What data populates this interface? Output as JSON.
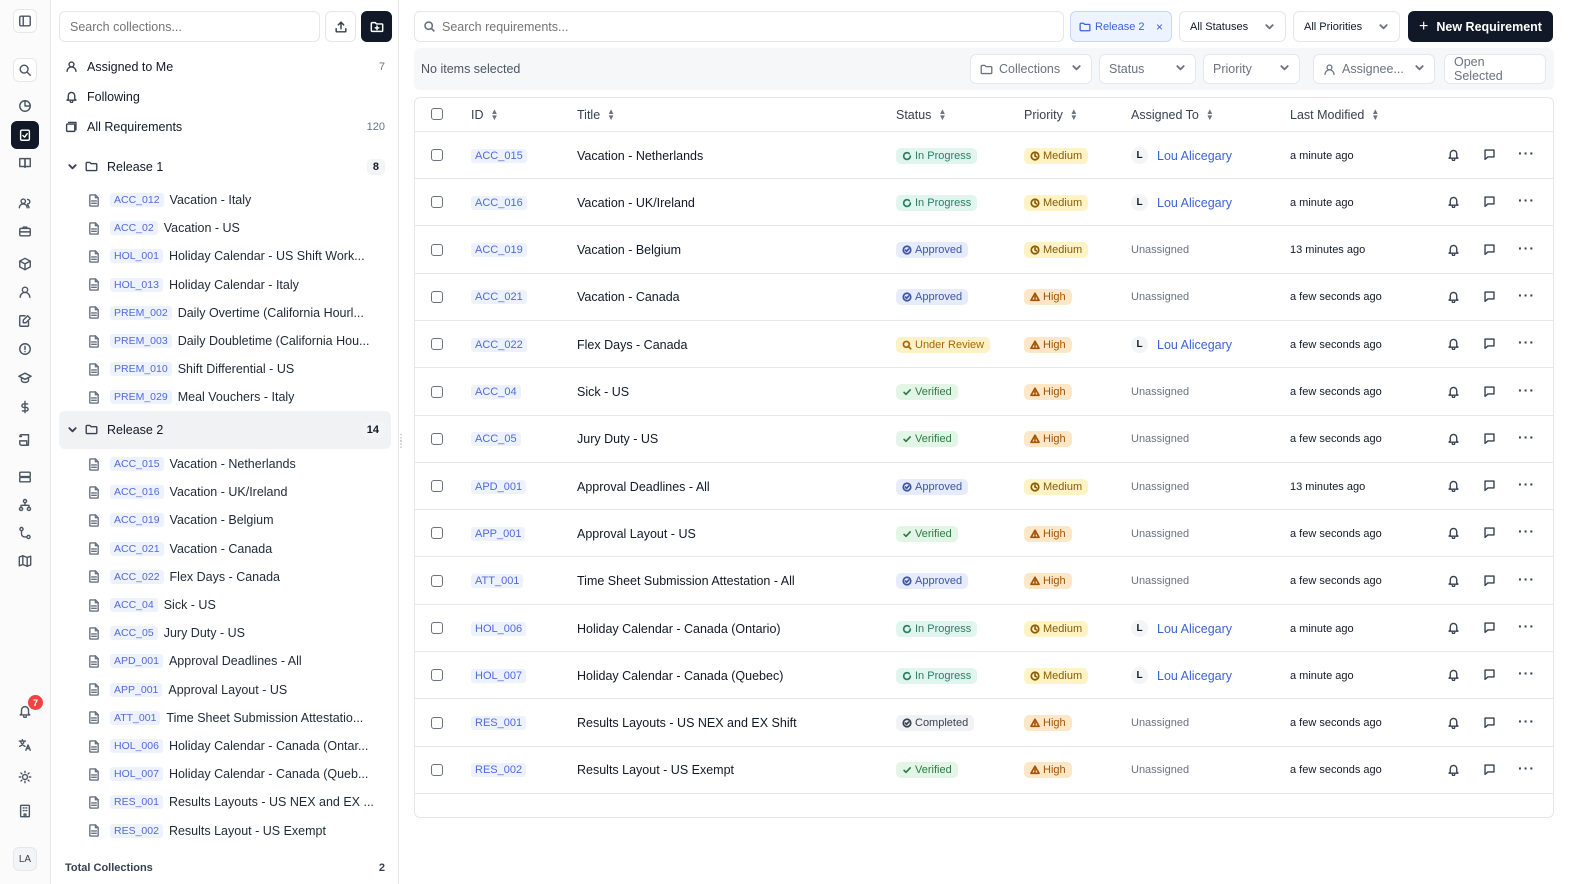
{
  "sidebar": {
    "search_placeholder": "Search collections...",
    "nav": [
      {
        "label": "Assigned to Me",
        "count": "7"
      },
      {
        "label": "Following",
        "count": ""
      },
      {
        "label": "All Requirements",
        "count": "120"
      }
    ],
    "release1": {
      "label": "Release 1",
      "count": "8",
      "items": [
        {
          "id": "ACC_012",
          "title": "Vacation - Italy"
        },
        {
          "id": "ACC_02",
          "title": "Vacation - US"
        },
        {
          "id": "HOL_001",
          "title": "Holiday Calendar - US Shift Work..."
        },
        {
          "id": "HOL_013",
          "title": "Holiday Calendar - Italy"
        },
        {
          "id": "PREM_002",
          "title": "Daily Overtime (California Hourl..."
        },
        {
          "id": "PREM_003",
          "title": "Daily Doubletime (California Hou..."
        },
        {
          "id": "PREM_010",
          "title": "Shift Differential - US"
        },
        {
          "id": "PREM_029",
          "title": "Meal Vouchers - Italy"
        }
      ]
    },
    "release2": {
      "label": "Release 2",
      "count": "14",
      "items": [
        {
          "id": "ACC_015",
          "title": "Vacation - Netherlands"
        },
        {
          "id": "ACC_016",
          "title": "Vacation - UK/Ireland"
        },
        {
          "id": "ACC_019",
          "title": "Vacation - Belgium"
        },
        {
          "id": "ACC_021",
          "title": "Vacation - Canada"
        },
        {
          "id": "ACC_022",
          "title": "Flex Days - Canada"
        },
        {
          "id": "ACC_04",
          "title": "Sick - US"
        },
        {
          "id": "ACC_05",
          "title": "Jury Duty - US"
        },
        {
          "id": "APD_001",
          "title": "Approval Deadlines - All"
        },
        {
          "id": "APP_001",
          "title": "Approval Layout - US"
        },
        {
          "id": "ATT_001",
          "title": "Time Sheet Submission Attestatio..."
        },
        {
          "id": "HOL_006",
          "title": "Holiday Calendar - Canada (Ontar..."
        },
        {
          "id": "HOL_007",
          "title": "Holiday Calendar - Canada (Queb..."
        },
        {
          "id": "RES_001",
          "title": "Results Layouts - US NEX and EX ..."
        },
        {
          "id": "RES_002",
          "title": "Results Layout - US Exempt"
        }
      ]
    },
    "footer": {
      "label": "Total Collections",
      "count": "2"
    }
  },
  "rail": {
    "notification_count": "7",
    "avatar_initials": "LA"
  },
  "toolbar": {
    "search_placeholder": "Search requirements...",
    "filter_chip": "Release 2",
    "chip_close": "×",
    "status_select": "All Statuses",
    "priority_select": "All Priorities",
    "new_button": "New Requirement",
    "new_button_plus": "+"
  },
  "bulk": {
    "selection_text": "No items selected",
    "collections": "Collections",
    "status": "Status",
    "priority": "Priority",
    "assignee": "Assignee...",
    "open_selected": "Open Selected"
  },
  "table": {
    "columns": {
      "id": "ID",
      "title": "Title",
      "status": "Status",
      "priority": "Priority",
      "assigned": "Assigned To",
      "modified": "Last Modified"
    },
    "rows": [
      {
        "id": "ACC_015",
        "title": "Vacation - Netherlands",
        "status": "In Progress",
        "priority": "Medium",
        "assignee": "Lou Alicegary",
        "initial": "L",
        "modified": "a minute ago"
      },
      {
        "id": "ACC_016",
        "title": "Vacation - UK/Ireland",
        "status": "In Progress",
        "priority": "Medium",
        "assignee": "Lou Alicegary",
        "initial": "L",
        "modified": "a minute ago"
      },
      {
        "id": "ACC_019",
        "title": "Vacation - Belgium",
        "status": "Approved",
        "priority": "Medium",
        "assignee": "",
        "initial": "",
        "unassigned": "Unassigned",
        "modified": "13 minutes ago"
      },
      {
        "id": "ACC_021",
        "title": "Vacation - Canada",
        "status": "Approved",
        "priority": "High",
        "assignee": "",
        "initial": "",
        "unassigned": "Unassigned",
        "modified": "a few seconds ago"
      },
      {
        "id": "ACC_022",
        "title": "Flex Days - Canada",
        "status": "Under Review",
        "priority": "High",
        "assignee": "Lou Alicegary",
        "initial": "L",
        "modified": "a few seconds ago"
      },
      {
        "id": "ACC_04",
        "title": "Sick - US",
        "status": "Verified",
        "priority": "High",
        "assignee": "",
        "initial": "",
        "unassigned": "Unassigned",
        "modified": "a few seconds ago"
      },
      {
        "id": "ACC_05",
        "title": "Jury Duty - US",
        "status": "Verified",
        "priority": "High",
        "assignee": "",
        "initial": "",
        "unassigned": "Unassigned",
        "modified": "a few seconds ago"
      },
      {
        "id": "APD_001",
        "title": "Approval Deadlines - All",
        "status": "Approved",
        "priority": "Medium",
        "assignee": "",
        "initial": "",
        "unassigned": "Unassigned",
        "modified": "13 minutes ago"
      },
      {
        "id": "APP_001",
        "title": "Approval Layout - US",
        "status": "Verified",
        "priority": "High",
        "assignee": "",
        "initial": "",
        "unassigned": "Unassigned",
        "modified": "a few seconds ago"
      },
      {
        "id": "ATT_001",
        "title": "Time Sheet Submission Attestation - All",
        "status": "Approved",
        "priority": "High",
        "assignee": "",
        "initial": "",
        "unassigned": "Unassigned",
        "modified": "a few seconds ago"
      },
      {
        "id": "HOL_006",
        "title": "Holiday Calendar - Canada (Ontario)",
        "status": "In Progress",
        "priority": "Medium",
        "assignee": "Lou Alicegary",
        "initial": "L",
        "modified": "a minute ago"
      },
      {
        "id": "HOL_007",
        "title": "Holiday Calendar - Canada (Quebec)",
        "status": "In Progress",
        "priority": "Medium",
        "assignee": "Lou Alicegary",
        "initial": "L",
        "modified": "a minute ago"
      },
      {
        "id": "RES_001",
        "title": "Results Layouts - US NEX and EX Shift",
        "status": "Completed",
        "priority": "High",
        "assignee": "",
        "initial": "",
        "unassigned": "Unassigned",
        "modified": "a few seconds ago"
      },
      {
        "id": "RES_002",
        "title": "Results Layout - US Exempt",
        "status": "Verified",
        "priority": "High",
        "assignee": "",
        "initial": "",
        "unassigned": "Unassigned",
        "modified": "a few seconds ago"
      }
    ]
  },
  "colors": {
    "accent": "#111827",
    "link": "#3b63d6",
    "notification": "#ef4444"
  }
}
